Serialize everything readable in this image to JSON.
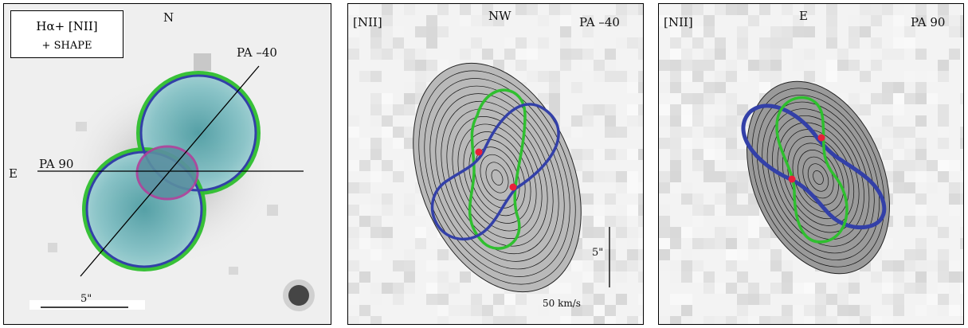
{
  "panel_a": {
    "legend_line1": "Hα+ [NII]",
    "legend_line2": "+ SHAPE",
    "north": "N",
    "east": "E",
    "pa_minus40": "PA –40",
    "pa_90": "PA 90",
    "scale": "5\""
  },
  "panel_b": {
    "line": "[NII]",
    "direction": "NW",
    "pa": "PA –40",
    "spatial_scale": "5\"",
    "velocity_scale": "50 km/s"
  },
  "panel_c": {
    "line": "[NII]",
    "direction": "E",
    "pa": "PA 90"
  },
  "colors": {
    "blue_model": "#3340a8",
    "green_model": "#2fbf2f",
    "magenta_ring": "#b0409a",
    "cyan_lobes": "#7fbcc0",
    "red_marker": "#e8203a"
  }
}
